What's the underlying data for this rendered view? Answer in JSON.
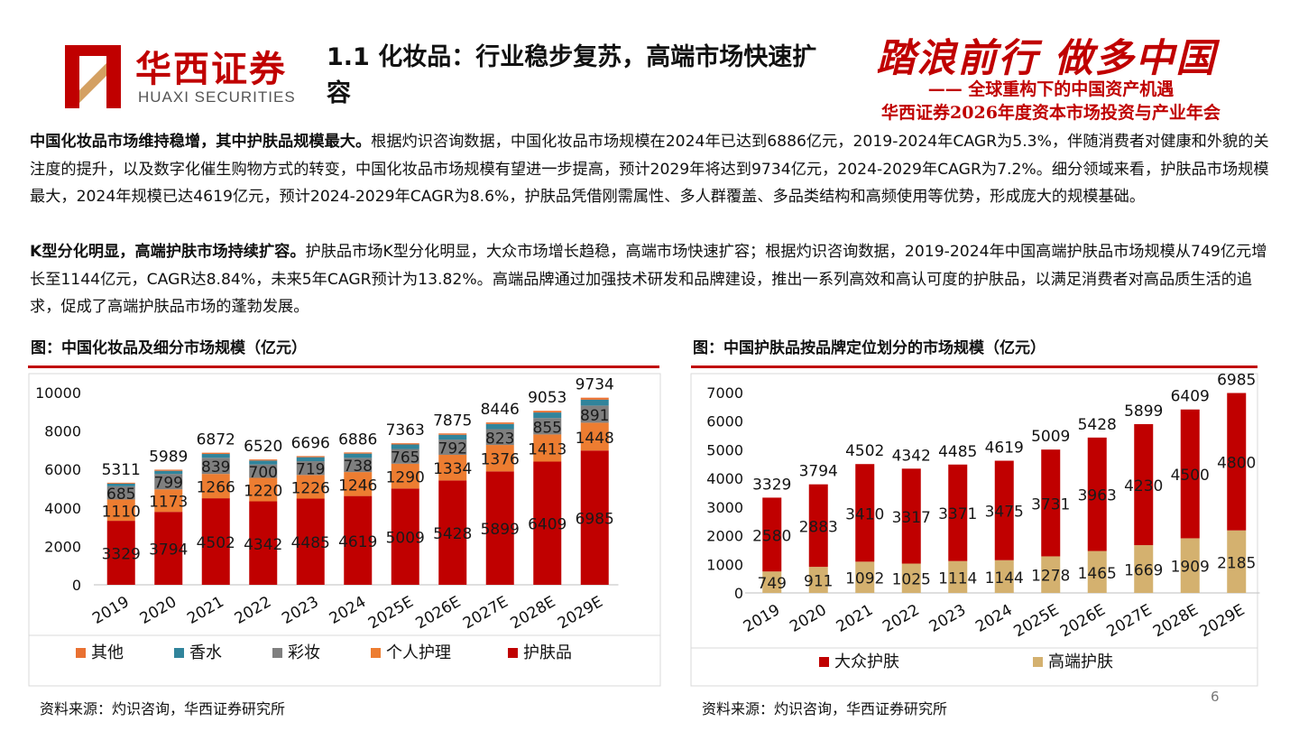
{
  "header": {
    "logo_cn": "华西证券",
    "logo_en": "HUAXI SECURITIES",
    "slide_title": "1.1 化妆品：行业稳步复苏，高端市场快速扩容",
    "conference_slogan": "踏浪前行 做多中国",
    "conference_subtitle": "—— 全球重构下的中国资产机遇",
    "conference_name": "华西证券2026年度资本市场投资与产业年会"
  },
  "paragraphs": [
    {
      "lead": "中国化妆品市场维持稳增，其中护肤品规模最大。",
      "body": "根据灼识咨询数据，中国化妆品市场规模在2024年已达到6886亿元，2019-2024年CAGR为5.3%，伴随消费者对健康和外貌的关注度的提升，以及数字化催生购物方式的转变，中国化妆品市场规模有望进一步提高，预计2029年将达到9734亿元，2024-2029年CAGR为7.2%。细分领域来看，护肤品市场规模最大，2024年规模已达4619亿元，预计2024-2029年CAGR为8.6%，护肤品凭借刚需属性、多人群覆盖、多品类结构和高频使用等优势，形成庞大的规模基础。"
    },
    {
      "lead": "K型分化明显，高端护肤市场持续扩容。",
      "body": "护肤品市场K型分化明显，大众市场增长趋稳，高端市场快速扩容；根据灼识咨询数据，2019-2024年中国高端护肤品市场规模从749亿元增长至1144亿元，CAGR达8.84%，未来5年CAGR预计为13.82%。高端品牌通过加强技术研发和品牌建设，推出一系列高效和高认可度的护肤品，以满足消费者对高品质生活的追求，促成了高端护肤品市场的蓬勃发展。"
    }
  ],
  "chart_data": [
    {
      "type": "bar",
      "stacked": true,
      "title": "图：中国化妆品及细分市场规模（亿元）",
      "categories": [
        "2019",
        "2020",
        "2021",
        "2022",
        "2023",
        "2024",
        "2025E",
        "2026E",
        "2027E",
        "2028E",
        "2029E"
      ],
      "series": [
        {
          "name": "护肤品",
          "color": "#c00000",
          "values": [
            3329,
            3794,
            4502,
            4342,
            4485,
            4619,
            5009,
            5428,
            5899,
            6409,
            6985
          ]
        },
        {
          "name": "个人护理",
          "color": "#ed7d31",
          "values": [
            1110,
            1173,
            1266,
            1220,
            1226,
            1246,
            1290,
            1334,
            1376,
            1413,
            1448
          ]
        },
        {
          "name": "彩妆",
          "color": "#7f7f7f",
          "values": [
            685,
            799,
            839,
            700,
            719,
            738,
            765,
            792,
            823,
            855,
            891
          ]
        },
        {
          "name": "香水",
          "color": "#31849b",
          "values": [
            139,
            164,
            199,
            201,
            208,
            222,
            236,
            251,
            269,
            287,
            305
          ]
        },
        {
          "name": "其他",
          "color": "#e97132",
          "values": [
            48,
            59,
            66,
            57,
            58,
            61,
            63,
            70,
            79,
            89,
            105
          ]
        }
      ],
      "labeled_series": [
        "护肤品",
        "个人护理",
        "彩妆"
      ],
      "totals": [
        5311,
        5989,
        6872,
        6520,
        6696,
        6886,
        7363,
        7875,
        8446,
        9053,
        9734
      ],
      "yticks": [
        "0",
        "2000",
        "4000",
        "6000",
        "8000",
        "10000"
      ],
      "ylim": [
        0,
        10000
      ],
      "legend_order": [
        "其他",
        "香水",
        "彩妆",
        "个人护理",
        "护肤品"
      ],
      "legend_position": "bottom",
      "source": "资料来源：灼识咨询，华西证券研究所"
    },
    {
      "type": "bar",
      "stacked": true,
      "title": "图：中国护肤品按品牌定位划分的市场规模（亿元）",
      "categories": [
        "2019",
        "2020",
        "2021",
        "2022",
        "2023",
        "2024",
        "2025E",
        "2026E",
        "2027E",
        "2028E",
        "2029E"
      ],
      "series": [
        {
          "name": "高端护肤",
          "color": "#d4b16f",
          "values": [
            749,
            911,
            1092,
            1025,
            1114,
            1144,
            1278,
            1465,
            1669,
            1909,
            2185
          ]
        },
        {
          "name": "大众护肤",
          "color": "#c00000",
          "values": [
            2580,
            2883,
            3410,
            3317,
            3371,
            3475,
            3731,
            3963,
            4230,
            4500,
            4800
          ]
        }
      ],
      "labeled_series": [
        "高端护肤",
        "大众护肤"
      ],
      "totals": [
        3329,
        3794,
        4502,
        4342,
        4485,
        4619,
        5009,
        5428,
        5899,
        6409,
        6985
      ],
      "yticks": [
        "0",
        "1000",
        "2000",
        "3000",
        "4000",
        "5000",
        "6000",
        "7000"
      ],
      "ylim": [
        0,
        7000
      ],
      "legend_order": [
        "大众护肤",
        "高端护肤"
      ],
      "legend_position": "bottom",
      "source": "资料来源：灼识咨询，华西证券研究所"
    }
  ],
  "page_number": "6"
}
